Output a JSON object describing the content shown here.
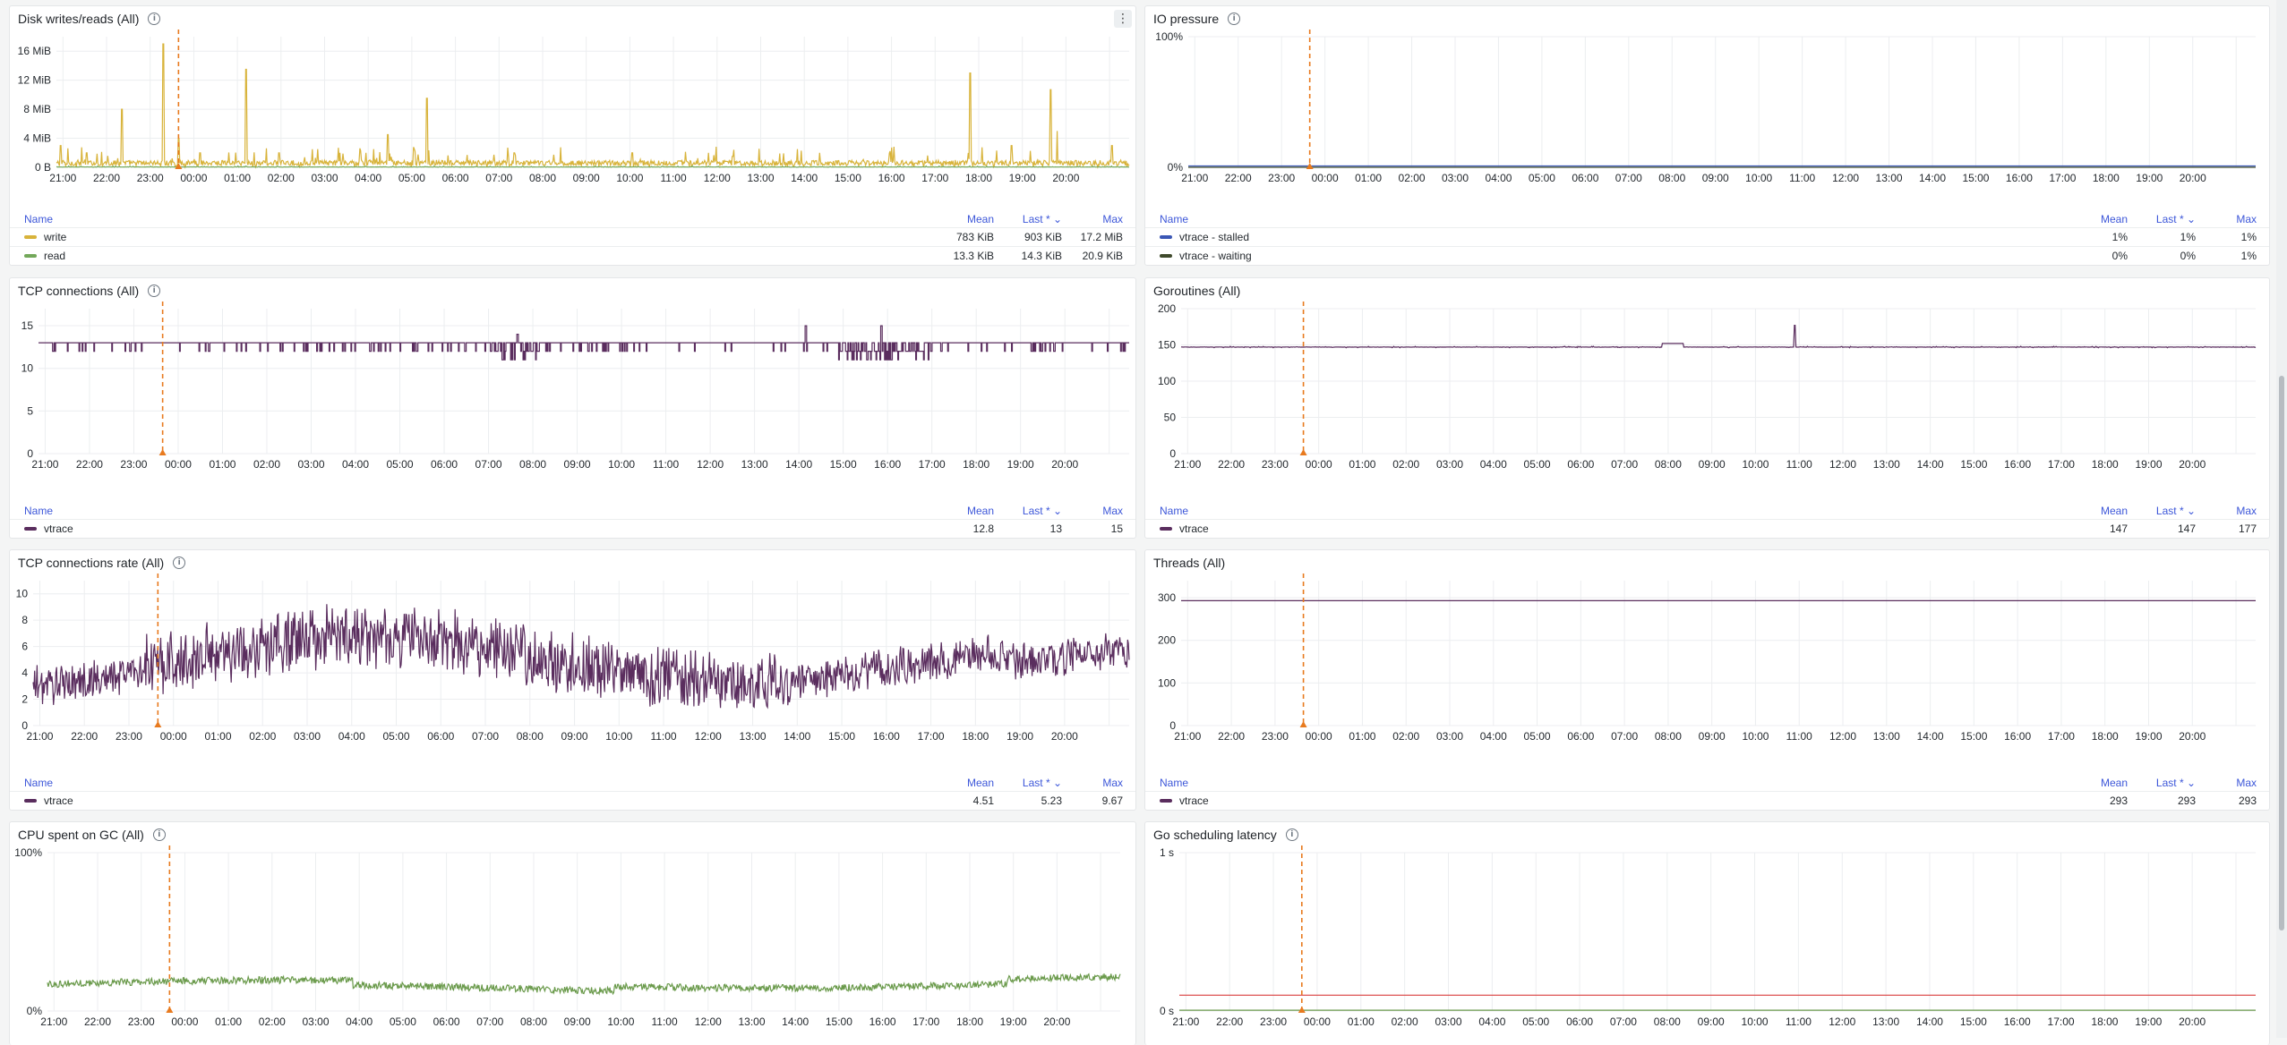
{
  "panels": [
    {
      "id": "disk",
      "title": "Disk writes/reads (All)",
      "has_menu": true,
      "chart_data": {
        "type": "line",
        "x": [
          "21:00",
          "22:00",
          "23:00",
          "00:00",
          "01:00",
          "02:00",
          "03:00",
          "04:00",
          "05:00",
          "06:00",
          "07:00",
          "08:00",
          "09:00",
          "10:00",
          "11:00",
          "12:00",
          "13:00",
          "14:00",
          "15:00",
          "16:00",
          "17:00",
          "18:00",
          "19:00",
          "20:00"
        ],
        "yticks": [
          "0 B",
          "4 MiB",
          "8 MiB",
          "12 MiB",
          "16 MiB"
        ],
        "ylim": [
          0,
          18
        ],
        "y_unit": "MiB",
        "marker_hour": 2.8,
        "series": [
          {
            "name": "write",
            "color": "#d8b33a",
            "baseline": 0.6,
            "noise": 0.9,
            "spikes": [
              [
                0.1,
                3
              ],
              [
                0.7,
                2
              ],
              [
                1.5,
                8
              ],
              [
                2.45,
                17
              ],
              [
                2.8,
                4
              ],
              [
                3.3,
                2
              ],
              [
                4.35,
                13.5
              ],
              [
                5.1,
                2
              ],
              [
                6.5,
                2
              ],
              [
                7.6,
                4.5
              ],
              [
                8.5,
                9.5
              ],
              [
                10.5,
                2
              ],
              [
                13.2,
                2
              ],
              [
                15.5,
                1.5
              ],
              [
                17.5,
                2
              ],
              [
                20.95,
                13
              ],
              [
                21.9,
                3
              ],
              [
                22.8,
                10.7
              ],
              [
                22.95,
                5
              ],
              [
                24.2,
                3
              ]
            ]
          },
          {
            "name": "read",
            "color": "#73a85a",
            "baseline": 0.05,
            "noise": 0.05,
            "spikes": []
          }
        ]
      },
      "legend": {
        "headers": {
          "name": "Name",
          "mean": "Mean",
          "last": "Last * ⌄",
          "max": "Max"
        },
        "rows": [
          {
            "name": "write",
            "color": "#d8b33a",
            "mean": "783 KiB",
            "last": "903 KiB",
            "max": "17.2 MiB"
          },
          {
            "name": "read",
            "color": "#73a85a",
            "mean": "13.3 KiB",
            "last": "14.3 KiB",
            "max": "20.9 KiB"
          }
        ]
      }
    },
    {
      "id": "io",
      "title": "IO pressure",
      "has_menu": false,
      "chart_data": {
        "type": "line",
        "x": [
          "21:00",
          "22:00",
          "23:00",
          "00:00",
          "01:00",
          "02:00",
          "03:00",
          "04:00",
          "05:00",
          "06:00",
          "07:00",
          "08:00",
          "09:00",
          "10:00",
          "11:00",
          "12:00",
          "13:00",
          "14:00",
          "15:00",
          "16:00",
          "17:00",
          "18:00",
          "19:00",
          "20:00"
        ],
        "yticks": [
          "0%",
          "100%"
        ],
        "ylim": [
          0,
          100
        ],
        "marker_hour": 2.8,
        "series": [
          {
            "name": "vtrace - stalled",
            "color": "#3b57b5",
            "baseline": 1,
            "noise": 0,
            "spikes": []
          },
          {
            "name": "vtrace - waiting",
            "color": "#3f4a2c",
            "baseline": 0,
            "noise": 0,
            "spikes": []
          }
        ]
      },
      "legend": {
        "headers": {
          "name": "Name",
          "mean": "Mean",
          "last": "Last * ⌄",
          "max": "Max"
        },
        "rows": [
          {
            "name": "vtrace - stalled",
            "color": "#3b57b5",
            "mean": "1%",
            "last": "1%",
            "max": "1%"
          },
          {
            "name": "vtrace - waiting",
            "color": "#3f4a2c",
            "mean": "0%",
            "last": "0%",
            "max": "1%"
          }
        ]
      }
    },
    {
      "id": "tcp",
      "title": "TCP connections (All)",
      "has_menu": false,
      "chart_data": {
        "type": "line",
        "x": [
          "21:00",
          "22:00",
          "23:00",
          "00:00",
          "01:00",
          "02:00",
          "03:00",
          "04:00",
          "05:00",
          "06:00",
          "07:00",
          "08:00",
          "09:00",
          "10:00",
          "11:00",
          "12:00",
          "13:00",
          "14:00",
          "15:00",
          "16:00",
          "17:00",
          "18:00",
          "19:00",
          "20:00"
        ],
        "yticks": [
          "0",
          "5",
          "10",
          "15"
        ],
        "ylim": [
          0,
          17
        ],
        "marker_hour": 2.8,
        "step": true,
        "series": [
          {
            "name": "vtrace",
            "color": "#5a2d5e",
            "baseline": 13,
            "dips": 12,
            "spikes": [
              [
                10.8,
                14
              ],
              [
                17.3,
                15
              ],
              [
                19.0,
                15
              ]
            ],
            "busy": [
              [
                10.3,
                11.3
              ],
              [
                18.0,
                20.2
              ]
            ]
          }
        ]
      },
      "legend": {
        "headers": {
          "name": "Name",
          "mean": "Mean",
          "last": "Last * ⌄",
          "max": "Max"
        },
        "rows": [
          {
            "name": "vtrace",
            "color": "#5a2d5e",
            "mean": "12.8",
            "last": "13",
            "max": "15"
          }
        ]
      }
    },
    {
      "id": "gor",
      "title": "Goroutines (All)",
      "has_menu": false,
      "chart_data": {
        "type": "line",
        "x": [
          "21:00",
          "22:00",
          "23:00",
          "00:00",
          "01:00",
          "02:00",
          "03:00",
          "04:00",
          "05:00",
          "06:00",
          "07:00",
          "08:00",
          "09:00",
          "10:00",
          "11:00",
          "12:00",
          "13:00",
          "14:00",
          "15:00",
          "16:00",
          "17:00",
          "18:00",
          "19:00",
          "20:00"
        ],
        "yticks": [
          "0",
          "50",
          "100",
          "150",
          "200"
        ],
        "ylim": [
          0,
          200
        ],
        "marker_hour": 2.8,
        "series": [
          {
            "name": "vtrace",
            "color": "#5a2d5e",
            "baseline": 147,
            "noise": 0.4,
            "spikes": [
              [
                14.05,
                177
              ]
            ],
            "bumps": [
              [
                11.0,
                11.5,
                152
              ]
            ]
          }
        ]
      },
      "legend": {
        "headers": {
          "name": "Name",
          "mean": "Mean",
          "last": "Last * ⌄",
          "max": "Max"
        },
        "rows": [
          {
            "name": "vtrace",
            "color": "#5a2d5e",
            "mean": "147",
            "last": "147",
            "max": "177"
          }
        ]
      }
    },
    {
      "id": "tcprate",
      "title": "TCP connections rate (All)",
      "has_menu": false,
      "chart_data": {
        "type": "line",
        "x": [
          "21:00",
          "22:00",
          "23:00",
          "00:00",
          "01:00",
          "02:00",
          "03:00",
          "04:00",
          "05:00",
          "06:00",
          "07:00",
          "08:00",
          "09:00",
          "10:00",
          "11:00",
          "12:00",
          "13:00",
          "14:00",
          "15:00",
          "16:00",
          "17:00",
          "18:00",
          "19:00",
          "20:00"
        ],
        "yticks": [
          "0",
          "2",
          "4",
          "6",
          "8",
          "10"
        ],
        "ylim": [
          0,
          11
        ],
        "marker_hour": 2.8,
        "series": [
          {
            "name": "vtrace",
            "color": "#5a2d5e",
            "baseline": 4.51,
            "noise": 0,
            "osc": true
          }
        ]
      },
      "legend": {
        "headers": {
          "name": "Name",
          "mean": "Mean",
          "last": "Last * ⌄",
          "max": "Max"
        },
        "rows": [
          {
            "name": "vtrace",
            "color": "#5a2d5e",
            "mean": "4.51",
            "last": "5.23",
            "max": "9.67"
          }
        ]
      }
    },
    {
      "id": "threads",
      "title": "Threads (All)",
      "has_menu": false,
      "chart_data": {
        "type": "line",
        "x": [
          "21:00",
          "22:00",
          "23:00",
          "00:00",
          "01:00",
          "02:00",
          "03:00",
          "04:00",
          "05:00",
          "06:00",
          "07:00",
          "08:00",
          "09:00",
          "10:00",
          "11:00",
          "12:00",
          "13:00",
          "14:00",
          "15:00",
          "16:00",
          "17:00",
          "18:00",
          "19:00",
          "20:00"
        ],
        "yticks": [
          "0",
          "100",
          "200",
          "300"
        ],
        "ylim": [
          0,
          340
        ],
        "marker_hour": 2.8,
        "series": [
          {
            "name": "vtrace",
            "color": "#5a2d5e",
            "baseline": 293,
            "noise": 0,
            "spikes": []
          }
        ]
      },
      "legend": {
        "headers": {
          "name": "Name",
          "mean": "Mean",
          "last": "Last * ⌄",
          "max": "Max"
        },
        "rows": [
          {
            "name": "vtrace",
            "color": "#5a2d5e",
            "mean": "293",
            "last": "293",
            "max": "293"
          }
        ]
      }
    },
    {
      "id": "gc",
      "title": "CPU spent on GC (All)",
      "has_menu": false,
      "chart_data": {
        "type": "line",
        "x": [
          "21:00",
          "22:00",
          "23:00",
          "00:00",
          "01:00",
          "02:00",
          "03:00",
          "04:00",
          "05:00",
          "06:00",
          "07:00",
          "08:00",
          "09:00",
          "10:00",
          "11:00",
          "12:00",
          "13:00",
          "14:00",
          "15:00",
          "16:00",
          "17:00",
          "18:00",
          "19:00",
          "20:00"
        ],
        "yticks": [
          "0%",
          "100%"
        ],
        "ylim": [
          0,
          100
        ],
        "marker_hour": 2.8,
        "series": [
          {
            "name": "",
            "color": "#6a9a4b",
            "baseline": 17,
            "noise": 2.2,
            "wave": true
          }
        ]
      },
      "legend": null
    },
    {
      "id": "sched",
      "title": "Go scheduling latency",
      "has_menu": false,
      "chart_data": {
        "type": "line",
        "x": [
          "21:00",
          "22:00",
          "23:00",
          "00:00",
          "01:00",
          "02:00",
          "03:00",
          "04:00",
          "05:00",
          "06:00",
          "07:00",
          "08:00",
          "09:00",
          "10:00",
          "11:00",
          "12:00",
          "13:00",
          "14:00",
          "15:00",
          "16:00",
          "17:00",
          "18:00",
          "19:00",
          "20:00"
        ],
        "yticks": [
          "0 s",
          "1 s"
        ],
        "ylim": [
          0,
          1
        ],
        "marker_hour": 2.8,
        "series": [
          {
            "name": "",
            "color": "#d93f3f",
            "baseline": 0.1,
            "noise": 0,
            "spikes": []
          },
          {
            "name": "",
            "color": "#6a9a4b",
            "baseline": 0.005,
            "noise": 0,
            "spikes": []
          }
        ]
      },
      "legend": null
    }
  ]
}
